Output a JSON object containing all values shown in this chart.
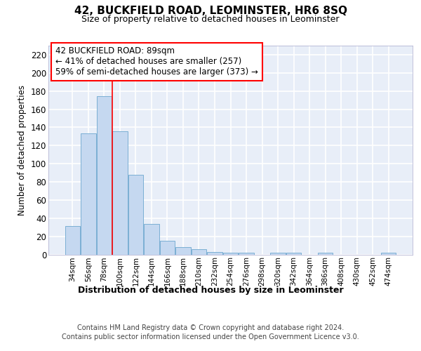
{
  "title": "42, BUCKFIELD ROAD, LEOMINSTER, HR6 8SQ",
  "subtitle": "Size of property relative to detached houses in Leominster",
  "xlabel": "Distribution of detached houses by size in Leominster",
  "ylabel": "Number of detached properties",
  "categories": [
    "34sqm",
    "56sqm",
    "78sqm",
    "100sqm",
    "122sqm",
    "144sqm",
    "166sqm",
    "188sqm",
    "210sqm",
    "232sqm",
    "254sqm",
    "276sqm",
    "298sqm",
    "320sqm",
    "342sqm",
    "364sqm",
    "386sqm",
    "408sqm",
    "430sqm",
    "452sqm",
    "474sqm"
  ],
  "values": [
    31,
    133,
    174,
    136,
    88,
    34,
    15,
    8,
    6,
    3,
    2,
    2,
    0,
    2,
    2,
    0,
    2,
    0,
    0,
    0,
    2
  ],
  "bar_color": "#c5d8f0",
  "bar_edge_color": "#7bafd4",
  "ylim": [
    0,
    230
  ],
  "yticks": [
    0,
    20,
    40,
    60,
    80,
    100,
    120,
    140,
    160,
    180,
    200,
    220
  ],
  "annotation_box_text": "42 BUCKFIELD ROAD: 89sqm\n← 41% of detached houses are smaller (257)\n59% of semi-detached houses are larger (373) →",
  "red_line_x": 2.5,
  "background_color": "#e8eef8",
  "grid_color": "#ffffff",
  "footer_line1": "Contains HM Land Registry data © Crown copyright and database right 2024.",
  "footer_line2": "Contains public sector information licensed under the Open Government Licence v3.0."
}
